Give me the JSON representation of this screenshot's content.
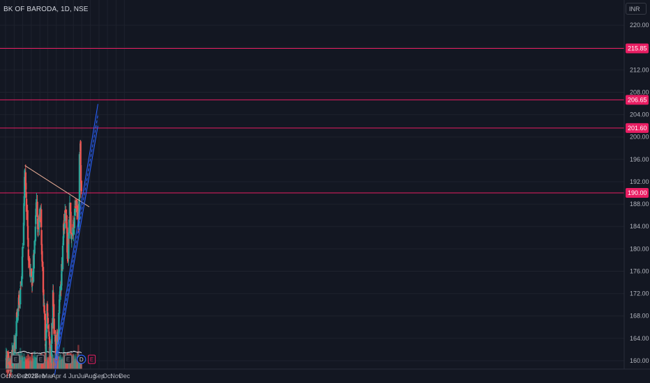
{
  "header": {
    "title": "BK OF BARODA, 1D, NSE",
    "currency": "INR"
  },
  "colors": {
    "background": "#131722",
    "up": "#26a69a",
    "down": "#ef5350",
    "level": "#e91e63",
    "trendline": "#f0b29a",
    "channel": "#2962ff",
    "volume_ma": "#e0e3eb"
  },
  "chart_data": {
    "type": "candlestick",
    "title": "BK OF BARODA, 1D, NSE",
    "ylim": [
      158.5,
      224.5
    ],
    "y_ticks": [
      "220.00",
      "216.00",
      "212.00",
      "208.00",
      "204.00",
      "200.00",
      "196.00",
      "192.00",
      "188.00",
      "184.00",
      "180.00",
      "176.00",
      "172.00",
      "168.00",
      "164.00",
      "160.00"
    ],
    "x_ticks": [
      "Oct",
      "Nov",
      "Dec",
      "2023",
      "Feb",
      "Mar",
      "Apr",
      "4",
      "Jun",
      "Jul",
      "Aug",
      "Sep",
      "Oct",
      "Nov",
      "Dec"
    ],
    "x_tick_dates": [
      "2022-10-01",
      "2022-11-01",
      "2022-12-01",
      "2023-01-01",
      "2023-02-01",
      "2023-03-01",
      "2023-04-01",
      "2023-05-01",
      "2023-06-01",
      "2023-07-01",
      "2023-08-01",
      "2023-09-01",
      "2023-10-01",
      "2023-11-01",
      "2023-12-01"
    ],
    "horizontal_levels": [
      {
        "value": 215.85,
        "label": "215.85"
      },
      {
        "value": 206.65,
        "label": "206.65"
      },
      {
        "value": 201.6,
        "label": "201.60"
      },
      {
        "value": 190.0,
        "label": "190.00"
      }
    ],
    "trendline": {
      "start": [
        "2022-12-09",
        194.9
      ],
      "end": [
        "2023-07-28",
        187.5
      ]
    },
    "channel": {
      "lower": {
        "start": [
          "2023-03-26",
          157.5
        ],
        "end": [
          "2023-08-28",
          202.0
        ]
      },
      "upper": {
        "start": [
          "2023-03-26",
          159.8
        ],
        "end": [
          "2023-08-28",
          205.9
        ]
      }
    },
    "earnings_markers": [
      {
        "date": "2022-11-06",
        "label": "E"
      },
      {
        "date": "2023-02-04",
        "label": "E"
      },
      {
        "date": "2023-05-13",
        "label": "E"
      },
      {
        "date": "2023-08-06",
        "label": "E"
      }
    ],
    "dividend_markers": [
      {
        "date": "2023-06-30",
        "label": "D"
      }
    ],
    "price_anchors": [
      [
        "2022-10-03",
        160.2
      ],
      [
        "2022-10-20",
        159.5
      ],
      [
        "2022-11-03",
        163.0
      ],
      [
        "2022-11-11",
        168.5
      ],
      [
        "2022-11-21",
        171.0
      ],
      [
        "2022-11-28",
        175.0
      ],
      [
        "2022-12-05",
        185.0
      ],
      [
        "2022-12-09",
        194.5
      ],
      [
        "2022-12-16",
        186.0
      ],
      [
        "2022-12-23",
        178.0
      ],
      [
        "2022-12-30",
        176.0
      ],
      [
        "2023-01-06",
        174.0
      ],
      [
        "2023-01-13",
        182.0
      ],
      [
        "2023-01-20",
        188.0
      ],
      [
        "2023-01-27",
        183.0
      ],
      [
        "2023-02-03",
        187.0
      ],
      [
        "2023-02-10",
        178.0
      ],
      [
        "2023-02-17",
        168.0
      ],
      [
        "2023-02-22",
        162.0
      ],
      [
        "2023-02-28",
        170.0
      ],
      [
        "2023-03-06",
        164.0
      ],
      [
        "2023-03-13",
        160.0
      ],
      [
        "2023-03-20",
        172.5
      ],
      [
        "2023-03-24",
        166.0
      ],
      [
        "2023-03-31",
        162.0
      ],
      [
        "2023-04-07",
        164.5
      ],
      [
        "2023-04-14",
        172.0
      ],
      [
        "2023-04-21",
        176.5
      ],
      [
        "2023-04-28",
        184.0
      ],
      [
        "2023-05-05",
        188.0
      ],
      [
        "2023-05-12",
        178.0
      ],
      [
        "2023-05-19",
        187.0
      ],
      [
        "2023-05-26",
        182.0
      ],
      [
        "2023-06-02",
        185.0
      ],
      [
        "2023-06-09",
        187.5
      ],
      [
        "2023-06-16",
        188.0
      ],
      [
        "2023-06-21",
        184.5
      ],
      [
        "2023-06-23",
        196.0
      ],
      [
        "2023-06-26",
        198.0
      ],
      [
        "2023-06-28",
        192.0
      ],
      [
        "2023-06-30",
        191.0
      ]
    ]
  }
}
